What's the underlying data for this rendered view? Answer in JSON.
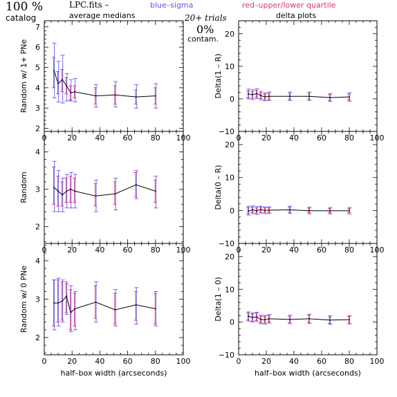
{
  "header": {
    "percent": "100 %",
    "catalog": "catalog",
    "filename": "LPC.fits  –",
    "blue_note": "blue–sigma",
    "red_note": "red–upper/lower quartile",
    "avg_title": "average medians",
    "trials": "20+ trials",
    "contam_pct": "0%",
    "contam_word": "contam.",
    "delta_title": "delta plots"
  },
  "colors": {
    "line": "#000000",
    "sigma": "#5a5af0",
    "quartile": "#e0306a"
  },
  "chart_data": [
    {
      "type": "line",
      "panel": "left-top",
      "xlabel": "",
      "ylabel": "Random w/ 1+ PNe",
      "xlim": [
        0,
        100
      ],
      "ylim": [
        1.85,
        7.3
      ],
      "xticks": [
        "0",
        "20",
        "40",
        "60",
        "80",
        "100"
      ],
      "yticks": [
        "2",
        "3",
        "4",
        "5",
        "6",
        "7"
      ],
      "x": [
        7,
        10,
        13,
        16,
        19,
        22,
        37,
        51,
        66,
        80
      ],
      "values": [
        4.85,
        4.2,
        4.4,
        4.1,
        3.75,
        3.8,
        3.6,
        3.65,
        3.55,
        3.6
      ],
      "sigma_low": [
        3.5,
        3.3,
        3.25,
        3.35,
        3.35,
        3.3,
        3.05,
        3.05,
        3.0,
        3.0
      ],
      "sigma_high": [
        6.2,
        5.3,
        5.6,
        4.7,
        4.4,
        4.45,
        4.15,
        4.3,
        4.15,
        4.2
      ],
      "q_low": [
        4.0,
        3.7,
        3.8,
        3.7,
        3.4,
        3.5,
        3.2,
        3.2,
        3.2,
        3.2
      ],
      "q_high": [
        5.5,
        4.8,
        4.9,
        4.5,
        4.1,
        4.1,
        4.0,
        4.1,
        3.9,
        4.0
      ]
    },
    {
      "type": "line",
      "panel": "right-top",
      "xlabel": "",
      "ylabel": "Delta(1 – R)",
      "xlim": [
        0,
        100
      ],
      "ylim": [
        -10,
        24
      ],
      "xticks": [
        "0",
        "20",
        "40",
        "60",
        "80",
        "100"
      ],
      "yticks": [
        "−10",
        "0",
        "10",
        "20"
      ],
      "x": [
        7,
        10,
        13,
        16,
        19,
        22,
        37,
        51,
        66,
        80
      ],
      "values": [
        1.5,
        1.3,
        1.6,
        1.0,
        0.6,
        0.8,
        0.8,
        0.8,
        0.4,
        0.6
      ],
      "sigma_low": [
        0.0,
        -0.2,
        0.1,
        -0.3,
        -0.6,
        -0.5,
        -0.5,
        -0.5,
        -0.8,
        -0.7
      ],
      "sigma_high": [
        3.0,
        2.8,
        3.1,
        2.3,
        1.8,
        2.1,
        2.1,
        2.1,
        1.6,
        1.9
      ],
      "q_low": [
        0.3,
        0.2,
        0.5,
        0.1,
        -0.3,
        -0.2,
        -0.2,
        -0.2,
        -0.5,
        -0.4
      ],
      "q_high": [
        2.5,
        2.3,
        2.6,
        1.9,
        1.5,
        1.7,
        1.7,
        1.7,
        1.3,
        1.5
      ]
    },
    {
      "type": "line",
      "panel": "left-middle",
      "xlabel": "",
      "ylabel": "Random",
      "xlim": [
        0,
        100
      ],
      "ylim": [
        1.55,
        4.55
      ],
      "xticks": [
        "0",
        "20",
        "40",
        "60",
        "80",
        "100"
      ],
      "yticks": [
        "2",
        "3",
        "4"
      ],
      "x": [
        7,
        10,
        13,
        16,
        19,
        22,
        37,
        51,
        66,
        80
      ],
      "values": [
        3.05,
        2.95,
        2.85,
        2.95,
        3.0,
        2.95,
        2.82,
        2.88,
        3.12,
        2.95
      ],
      "sigma_low": [
        2.4,
        2.4,
        2.4,
        2.5,
        2.5,
        2.5,
        2.4,
        2.45,
        2.75,
        2.5
      ],
      "sigma_high": [
        3.75,
        3.5,
        3.3,
        3.4,
        3.45,
        3.4,
        3.25,
        3.3,
        3.5,
        3.35
      ],
      "q_low": [
        2.6,
        2.55,
        2.55,
        2.65,
        2.65,
        2.65,
        2.55,
        2.6,
        2.8,
        2.65
      ],
      "q_high": [
        3.6,
        3.35,
        3.2,
        3.3,
        3.35,
        3.3,
        3.15,
        3.2,
        3.45,
        3.25
      ]
    },
    {
      "type": "line",
      "panel": "right-middle",
      "xlabel": "",
      "ylabel": "Delta(0 – R)",
      "xlim": [
        0,
        100
      ],
      "ylim": [
        -10,
        24
      ],
      "xticks": [
        "0",
        "20",
        "40",
        "60",
        "80",
        "100"
      ],
      "yticks": [
        "−10",
        "0",
        "10",
        "20"
      ],
      "x": [
        7,
        10,
        13,
        16,
        19,
        22,
        37,
        51,
        66,
        80
      ],
      "values": [
        -0.2,
        0.2,
        -0.1,
        0.3,
        0.0,
        0.1,
        0.2,
        -0.1,
        -0.1,
        -0.1
      ],
      "sigma_low": [
        -1.4,
        -1.0,
        -1.2,
        -0.8,
        -1.0,
        -0.9,
        -0.9,
        -1.0,
        -1.0,
        -1.0
      ],
      "sigma_high": [
        1.2,
        1.4,
        1.2,
        1.3,
        1.1,
        1.1,
        1.3,
        1.0,
        0.9,
        0.9
      ],
      "q_low": [
        -1.0,
        -0.6,
        -0.8,
        -0.5,
        -0.6,
        -0.6,
        -0.6,
        -0.7,
        -0.7,
        -0.7
      ],
      "q_high": [
        0.9,
        1.0,
        0.8,
        1.0,
        0.8,
        0.8,
        1.0,
        0.7,
        0.6,
        0.6
      ]
    },
    {
      "type": "line",
      "panel": "left-bottom",
      "xlabel": "half–box width (arcseconds)",
      "ylabel": "Random w/ 0 PNe",
      "xlim": [
        0,
        100
      ],
      "ylim": [
        1.55,
        4.45
      ],
      "xticks": [
        "0",
        "20",
        "40",
        "60",
        "80",
        "100"
      ],
      "yticks": [
        "2",
        "3",
        "4"
      ],
      "x": [
        7,
        10,
        13,
        16,
        19,
        22,
        37,
        51,
        66,
        80
      ],
      "values": [
        2.9,
        2.9,
        2.95,
        3.08,
        2.65,
        2.75,
        2.92,
        2.72,
        2.85,
        2.75
      ],
      "sigma_low": [
        2.2,
        2.3,
        2.4,
        2.6,
        2.15,
        2.2,
        2.4,
        2.3,
        2.35,
        2.3
      ],
      "sigma_high": [
        3.5,
        3.55,
        3.5,
        3.4,
        3.35,
        3.2,
        3.45,
        3.25,
        3.3,
        3.2
      ],
      "q_low": [
        2.3,
        2.4,
        2.45,
        2.65,
        2.2,
        2.3,
        2.5,
        2.35,
        2.45,
        2.35
      ],
      "q_high": [
        3.5,
        3.5,
        3.45,
        3.45,
        3.25,
        3.15,
        3.35,
        3.15,
        3.2,
        3.15
      ]
    },
    {
      "type": "line",
      "panel": "right-bottom",
      "xlabel": "half–box width (arcseconds)",
      "ylabel": "Delta(1 – 0)",
      "xlim": [
        0,
        100
      ],
      "ylim": [
        -10,
        24
      ],
      "xticks": [
        "0",
        "20",
        "40",
        "60",
        "80",
        "100"
      ],
      "yticks": [
        "−10",
        "0",
        "10",
        "20"
      ],
      "x": [
        7,
        10,
        13,
        16,
        19,
        22,
        37,
        51,
        66,
        80
      ],
      "values": [
        1.8,
        1.4,
        1.6,
        0.8,
        0.7,
        1.0,
        0.8,
        1.0,
        0.6,
        0.7
      ],
      "sigma_low": [
        0.3,
        0.0,
        0.2,
        -0.5,
        -0.6,
        -0.3,
        -0.5,
        -0.4,
        -0.7,
        -0.6
      ],
      "sigma_high": [
        3.1,
        2.8,
        3.0,
        2.1,
        2.0,
        2.3,
        2.1,
        2.4,
        1.9,
        2.0
      ],
      "q_low": [
        0.6,
        0.3,
        0.5,
        -0.2,
        -0.3,
        0.0,
        -0.2,
        -0.1,
        -0.4,
        -0.3
      ],
      "q_high": [
        2.8,
        2.5,
        2.7,
        1.8,
        1.7,
        2.0,
        1.8,
        2.1,
        1.6,
        1.7
      ]
    }
  ]
}
